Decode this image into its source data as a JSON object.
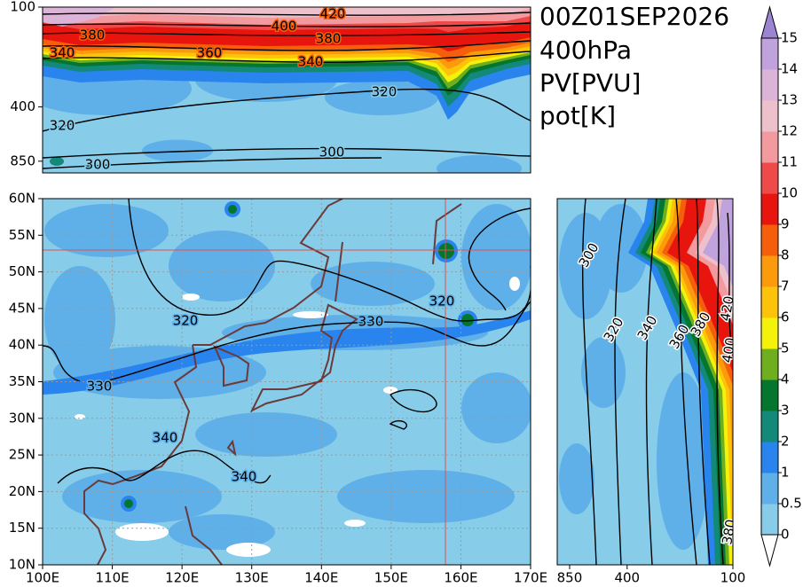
{
  "title_lines": [
    "00Z01SEP2026",
    "400hPa",
    "PV[PVU]",
    "pot[K]"
  ],
  "colorbar": {
    "levels": [
      0,
      0.5,
      1,
      2,
      3,
      4,
      5,
      6,
      7,
      8,
      9,
      10,
      11,
      12,
      13,
      14,
      15
    ],
    "colors": [
      "#87cdea",
      "#5fb0e8",
      "#2a84ee",
      "#13897a",
      "#05762d",
      "#6fae1f",
      "#f4f20a",
      "#fcc30a",
      "#fb9b0c",
      "#f55e0a",
      "#e8150f",
      "#ef4a4a",
      "#f29a9e",
      "#eec0cc",
      "#dcb4d8",
      "#c0a2dc"
    ],
    "under_color": "#ffffff",
    "over_color": "#9b84d2"
  },
  "cross_section_top": {
    "ylim": [
      1000,
      100
    ],
    "yticks": [
      100,
      400,
      850
    ],
    "log": true,
    "contour_labels": [
      420,
      400,
      380,
      380,
      360,
      340,
      340,
      320,
      320,
      300,
      300
    ]
  },
  "map": {
    "xlim": [
      100,
      170
    ],
    "ylim": [
      10,
      60
    ],
    "xticks": [
      {
        "value": 100,
        "label": "100E"
      },
      {
        "value": 110,
        "label": "110E"
      },
      {
        "value": 120,
        "label": "120E"
      },
      {
        "value": 130,
        "label": "130E"
      },
      {
        "value": 140,
        "label": "140E"
      },
      {
        "value": 150,
        "label": "150E"
      },
      {
        "value": 160,
        "label": "160E"
      },
      {
        "value": 170,
        "label": "170E"
      }
    ],
    "yticks": [
      {
        "value": 10,
        "label": "10N"
      },
      {
        "value": 15,
        "label": "15N"
      },
      {
        "value": 20,
        "label": "20N"
      },
      {
        "value": 25,
        "label": "25N"
      },
      {
        "value": 30,
        "label": "30N"
      },
      {
        "value": 35,
        "label": "35N"
      },
      {
        "value": 40,
        "label": "40N"
      },
      {
        "value": 45,
        "label": "45N"
      },
      {
        "value": 50,
        "label": "50N"
      },
      {
        "value": 55,
        "label": "55N"
      },
      {
        "value": 60,
        "label": "60N"
      }
    ],
    "grid": true,
    "contour_labels": [
      320,
      330,
      320,
      330,
      340,
      340
    ]
  },
  "cross_section_right": {
    "xlim": [
      1000,
      100
    ],
    "xticks": [
      850,
      400,
      100
    ],
    "log": true,
    "contour_labels": [
      300,
      320,
      340,
      360,
      380,
      420,
      400,
      380
    ]
  }
}
